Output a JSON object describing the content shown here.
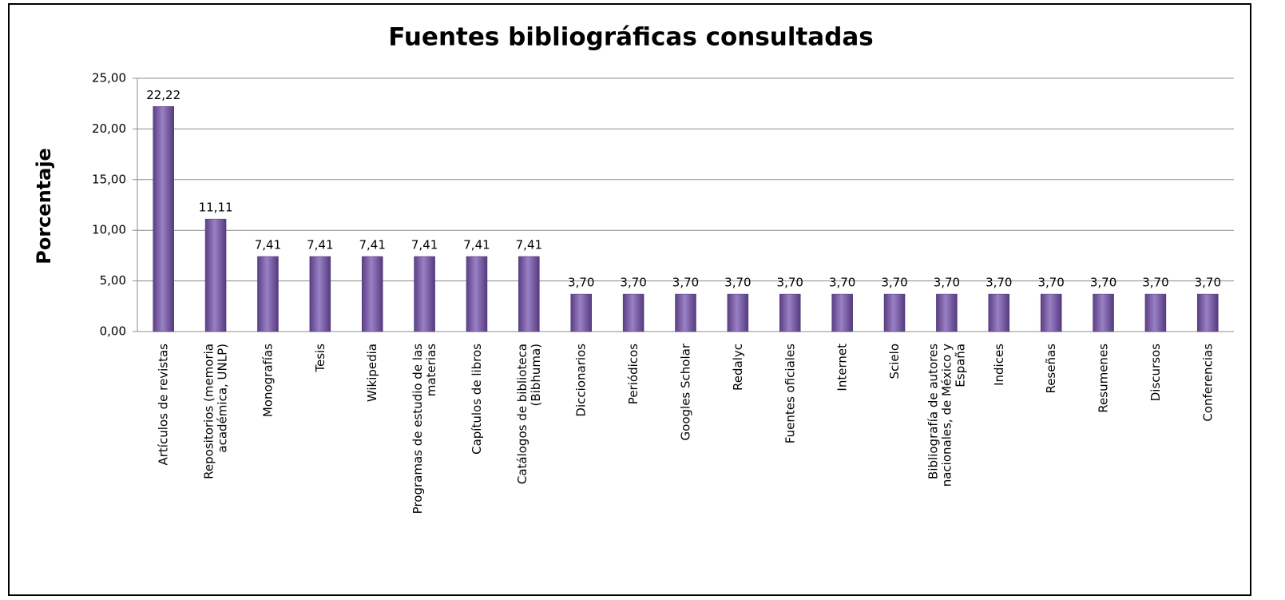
{
  "chart_data": {
    "type": "bar",
    "title": "Fuentes bibliográficas consultadas",
    "y_label": "Porcentaje",
    "categories": [
      "Artículos de revistas",
      "Repositorios (memoria académica, UNLP)",
      "Monografías",
      "Tesis",
      "Wikipedia",
      "Programas de estudio de las materias",
      "Capítulos de libros",
      "Catálogos de biblioteca (Bibhuma)",
      "Diccionarios",
      "Periódicos",
      "Googles Scholar",
      "Redalyc",
      "Fuentes oficiales",
      "Internet",
      "Scielo",
      "Bibliografía de autores nacionales, de México y España",
      "Indices",
      "Reseñas",
      "Resumenes",
      "Discursos",
      "Conferencias"
    ],
    "values": [
      22.22,
      11.11,
      7.41,
      7.41,
      7.41,
      7.41,
      7.41,
      7.41,
      3.7,
      3.7,
      3.7,
      3.7,
      3.7,
      3.7,
      3.7,
      3.7,
      3.7,
      3.7,
      3.7,
      3.7,
      3.7
    ],
    "value_labels": [
      "22,22",
      "11,11",
      "7,41",
      "7,41",
      "7,41",
      "7,41",
      "7,41",
      "7,41",
      "3,70",
      "3,70",
      "3,70",
      "3,70",
      "3,70",
      "3,70",
      "3,70",
      "3,70",
      "3,70",
      "3,70",
      "3,70",
      "3,70",
      "3,70"
    ],
    "color": "#8064a2",
    "ylim": [
      0,
      25
    ],
    "yticks": [
      {
        "value": 0,
        "label": "0,00"
      },
      {
        "value": 5,
        "label": "5,00"
      },
      {
        "value": 10,
        "label": "10,00"
      },
      {
        "value": 15,
        "label": "15,00"
      },
      {
        "value": 20,
        "label": "20,00"
      },
      {
        "value": 25,
        "label": "25,00"
      }
    ],
    "grid": true
  }
}
